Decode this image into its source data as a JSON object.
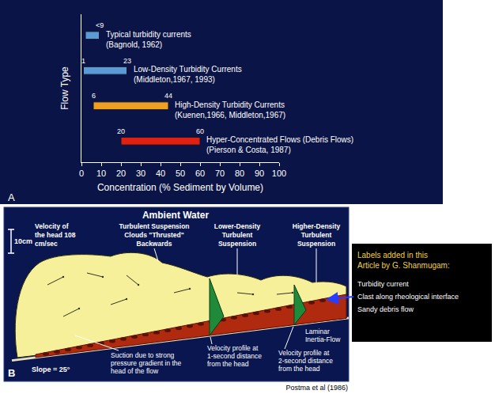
{
  "chart_data": {
    "type": "bar",
    "orientation": "horizontal",
    "letter": "A",
    "x_label": "Concentration (% Sediment by Volume)",
    "y_label": "Flow Type",
    "categories": [
      "Typical turbidity currents",
      "Low-Density Turbidity Currents",
      "High-Density Turbidity Currents",
      "Hyper-Concentrated Flows (Debris Flows)"
    ],
    "citations": [
      "(Bagnold, 1962)",
      "(Middleton,1967, 1993)",
      "(Kuenen,1966, Middleton,1967)",
      "(Pierson & Costa, 1987)"
    ],
    "starts": [
      2,
      1,
      6,
      20
    ],
    "ends": [
      9,
      23,
      44,
      60
    ],
    "start_labels": [
      null,
      "1",
      "6",
      "20"
    ],
    "end_labels": [
      "<9",
      "23",
      "44",
      "60"
    ],
    "colors": [
      "#5b9bd5",
      "#5b9bd5",
      "#f0a020",
      "#e02010"
    ],
    "xlim": [
      0,
      100
    ],
    "xticks": [
      0,
      10,
      20,
      30,
      40,
      50,
      60,
      70,
      80,
      90,
      100
    ],
    "tick_labels": "x",
    "grid": false
  },
  "diagram": {
    "letter": "B",
    "title": "Ambient Water",
    "scale": "10cm",
    "head_velocity": [
      "Velocity of",
      "the head 108",
      "cm/sec"
    ],
    "cloud_label": [
      "Turbulent Suspension",
      "Clouds \"Thrusted\"",
      "Backwards"
    ],
    "lower_label": [
      "Lower-Density",
      "Turbulent",
      "Suspension"
    ],
    "higher_label": [
      "Higher-Density",
      "Turbulent",
      "Suspension"
    ],
    "suction_label": [
      "Suction due to strong",
      "pressure gradient in the",
      "head of the flow"
    ],
    "slope_label": "Slope = 25°",
    "profile_1": [
      "Velocity profile at",
      "1-second distance",
      "from the head"
    ],
    "profile_2": [
      "Velocity profile at",
      "2-second distance",
      "from the head"
    ],
    "laminar_label": [
      "Laminar",
      "Inertia-Flow"
    ],
    "credit": "Postma et al (1986)"
  },
  "note": {
    "heading": [
      "Labels added in this",
      "Article by G. Shanmugam:"
    ],
    "items": [
      "Turbidity current",
      "Clast along rheological interface",
      "Sandy debris flow"
    ]
  }
}
